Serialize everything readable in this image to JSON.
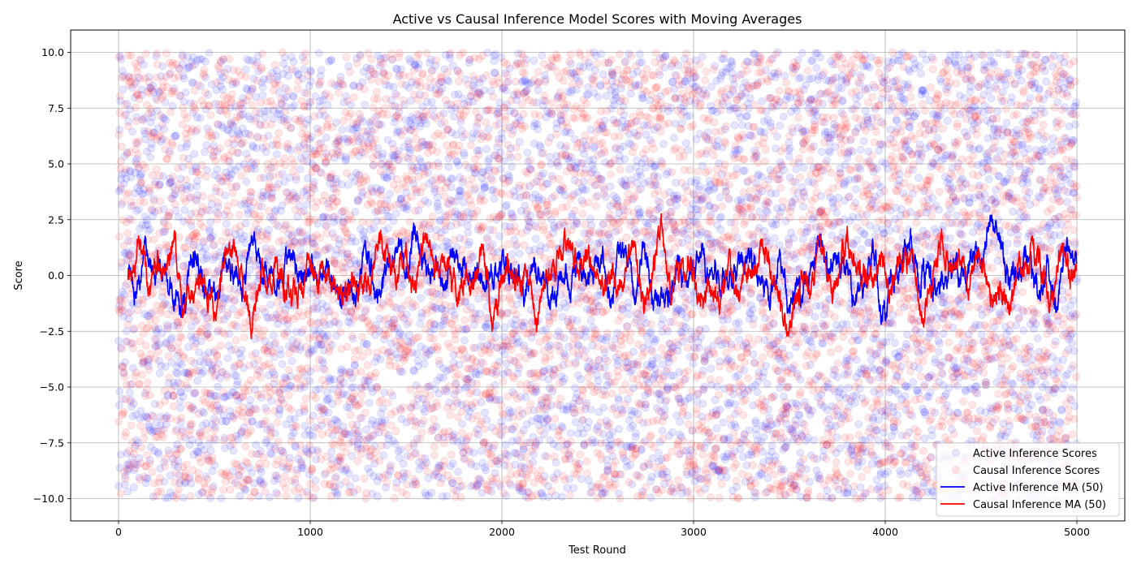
{
  "chart_data": {
    "type": "scatter",
    "title": "Active vs Causal Inference Model Scores with Moving Averages",
    "xlabel": "Test Round",
    "ylabel": "Score",
    "xlim": [
      -250,
      5250
    ],
    "ylim": [
      -11,
      11
    ],
    "xticks": [
      0,
      1000,
      2000,
      3000,
      4000,
      5000
    ],
    "yticks": [
      -10.0,
      -7.5,
      -5.0,
      -2.5,
      0.0,
      2.5,
      5.0,
      7.5,
      10.0
    ],
    "grid": true,
    "legend_position": "bottom-right",
    "n_points": 5000,
    "score_range": [
      -10,
      10
    ],
    "moving_average_window": 50,
    "series": [
      {
        "name": "Active Inference Scores",
        "kind": "scatter",
        "color": "#0000ff",
        "alpha": 0.1
      },
      {
        "name": "Causal Inference Scores",
        "kind": "scatter",
        "color": "#ff0000",
        "alpha": 0.1
      },
      {
        "name": "Active Inference MA (50)",
        "kind": "line",
        "color": "#0000ff"
      },
      {
        "name": "Causal Inference MA (50)",
        "kind": "line",
        "color": "#ff0000"
      }
    ]
  }
}
